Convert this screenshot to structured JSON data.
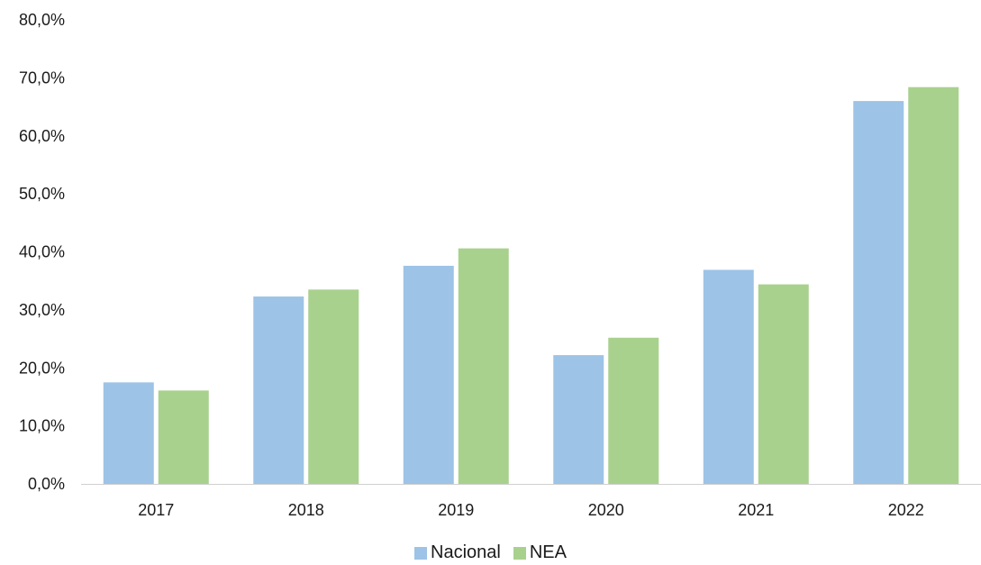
{
  "chart_data": {
    "type": "bar",
    "categories": [
      "2017",
      "2018",
      "2019",
      "2020",
      "2021",
      "2022"
    ],
    "series": [
      {
        "name": "Nacional",
        "color": "#9dc3e6",
        "values": [
          17.5,
          32.3,
          37.6,
          22.2,
          36.9,
          66.0
        ]
      },
      {
        "name": "NEA",
        "color": "#a9d18e",
        "values": [
          16.1,
          33.5,
          40.6,
          25.2,
          34.4,
          68.4
        ]
      }
    ],
    "ylim": [
      0,
      80
    ],
    "yticks": [
      "0,0%",
      "10,0%",
      "20,0%",
      "30,0%",
      "40,0%",
      "50,0%",
      "60,0%",
      "70,0%",
      "80,0%"
    ],
    "grid": false,
    "legend_position": "bottom"
  }
}
